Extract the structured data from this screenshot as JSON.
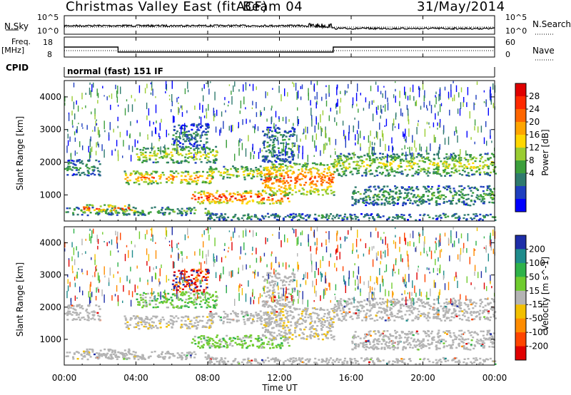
{
  "header": {
    "station": "Christmas Valley East (fitACF)",
    "beam": "Beam 04",
    "date": "31/May/2014"
  },
  "panel_labels": {
    "nsky": "N.Sky",
    "nsky_ticks": [
      "10^5",
      "10^0"
    ],
    "nsearch": "N.Search",
    "freq": "Freq.",
    "freq_unit": "[MHz]",
    "freq_ticks": [
      "18",
      "8"
    ],
    "nave": "Nave",
    "nave_ticks": [
      "60",
      "0"
    ],
    "cpid": "CPID",
    "cpid_value": "normal (fast) 151 IF"
  },
  "chart_data": {
    "type": "heatmap",
    "xlabel": "Time UT",
    "x_ticks": [
      "00:00",
      "04:00",
      "08:00",
      "12:00",
      "16:00",
      "20:00",
      "00:00"
    ],
    "xlim_hours": [
      0,
      24
    ],
    "ylabel": "Slant Range [km]",
    "ylim": [
      200,
      4500
    ],
    "y_ticks": [
      1000,
      2000,
      3000,
      4000
    ],
    "power": {
      "label": "Power [dB]",
      "ticks": [
        "28",
        "24",
        "20",
        "16",
        "12",
        "8",
        "4"
      ],
      "colors": [
        "#0000ff",
        "#1f3fbf",
        "#2f7a6e",
        "#3c9f3c",
        "#9acd32",
        "#ffd700",
        "#ffa500",
        "#ff6600",
        "#ff2a00",
        "#e00000"
      ]
    },
    "velocity": {
      "label": "Velocity [m s^-1]",
      "ticks": [
        "200",
        "100",
        "50",
        "15",
        "-15",
        "-50",
        "-100",
        "-200"
      ],
      "colors": [
        "#1e2ea8",
        "#1f8c8c",
        "#2fb24a",
        "#70cc2f",
        "#b4b4b4",
        "#f2c000",
        "#ff8c00",
        "#ff4500",
        "#e00000"
      ]
    },
    "frequency_mhz": [
      {
        "from_h": 0,
        "to_h": 3,
        "value": 13
      },
      {
        "from_h": 3,
        "to_h": 15,
        "value": 10.5
      },
      {
        "from_h": 15,
        "to_h": 24,
        "value": 13
      }
    ],
    "scatter_regions": [
      {
        "name": "band-near",
        "t0": 0,
        "t1": 8.2,
        "r0": 400,
        "r1": 650,
        "p": 12
      },
      {
        "name": "band-early",
        "t0": 1.0,
        "t1": 4.0,
        "r0": 500,
        "r1": 720,
        "p": 25
      },
      {
        "name": "band-1700",
        "t0": 0,
        "t1": 2.0,
        "r0": 1600,
        "r1": 2100,
        "p": 10
      },
      {
        "name": "band-1500",
        "t0": 3.3,
        "t1": 8.2,
        "r0": 1350,
        "r1": 1750,
        "p": 22
      },
      {
        "name": "band-2200",
        "t0": 4.0,
        "t1": 8.5,
        "r0": 2000,
        "r1": 2500,
        "p": 16
      },
      {
        "name": "band-2900",
        "t0": 6.0,
        "t1": 8.0,
        "r0": 2500,
        "r1": 3200,
        "p": 8
      },
      {
        "name": "band-1000",
        "t0": 7.0,
        "t1": 12.5,
        "r0": 750,
        "r1": 1150,
        "p": 27
      },
      {
        "name": "band-1700b",
        "t0": 8.0,
        "t1": 12.0,
        "r0": 1500,
        "r1": 1900,
        "p": 17
      },
      {
        "name": "band-decay",
        "t0": 11.0,
        "t1": 15.0,
        "r0": 1000,
        "r1": 2000,
        "p": 24
      },
      {
        "name": "band-2700",
        "t0": 11.0,
        "t1": 12.8,
        "r0": 2000,
        "r1": 3100,
        "p": 10
      },
      {
        "name": "band-2100",
        "t0": 15.0,
        "t1": 24.0,
        "r0": 1600,
        "r1": 2300,
        "p": 15
      },
      {
        "name": "band-1000b",
        "t0": 16.0,
        "t1": 24.0,
        "r0": 700,
        "r1": 1300,
        "p": 11
      },
      {
        "name": "band-low",
        "t0": 8.0,
        "t1": 24.0,
        "r0": 250,
        "r1": 450,
        "p": 9
      }
    ]
  }
}
